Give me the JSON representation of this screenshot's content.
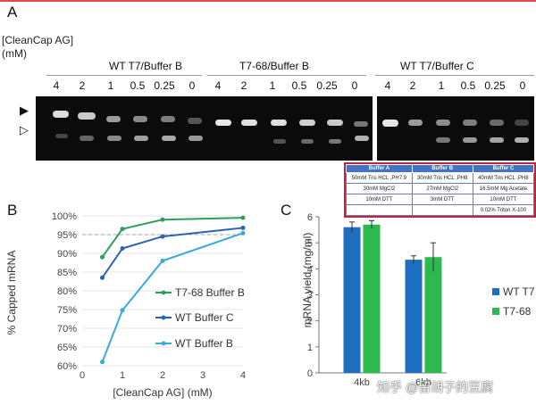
{
  "panels": {
    "a": "A",
    "b": "B",
    "c": "C"
  },
  "gel": {
    "ylabel_line1": "[CleanCap AG]",
    "ylabel_line2": "(mM)",
    "groups": [
      {
        "label": "WT T7/Buffer B",
        "concs": [
          "4",
          "2",
          "1",
          "0.5",
          "0.25",
          "0"
        ]
      },
      {
        "label": "T7-68/Buffer B",
        "concs": [
          "4",
          "2",
          "1",
          "0.5",
          "0.25",
          "0"
        ]
      },
      {
        "label": "WT T7/Buffer C",
        "concs": [
          "4",
          "2",
          "1",
          "0.5",
          "0.25",
          "0"
        ]
      }
    ],
    "marker_top": "▶",
    "marker_bottom": "▷"
  },
  "buffer_table": {
    "headers": [
      "Buffer A",
      "Buffer B",
      "Buffer C"
    ],
    "rows": [
      [
        "50mM Tris HCL ,PH7.9",
        "30mM Tris HCL ,PH8",
        "40mM Tris HCL ,PH8"
      ],
      [
        "30mM MgCl2",
        "27mM MgCl2",
        "16.5mM Mg Acetate"
      ],
      [
        "10mM DTT",
        "3mM DTT",
        "10mM DTT"
      ],
      [
        "",
        "",
        "0.02% Triton X-100"
      ]
    ]
  },
  "chart_data": [
    {
      "type": "line",
      "xlabel": "[CleanCap AG] (mM)",
      "ylabel": "% Capped mRNA",
      "xlim": [
        0,
        4
      ],
      "ylim": [
        60,
        100
      ],
      "xticks": [
        "0",
        "1",
        "2",
        "3",
        "4"
      ],
      "yticks": [
        "60%",
        "65%",
        "70%",
        "75%",
        "80%",
        "85%",
        "90%",
        "95%",
        "100%"
      ],
      "reference_line": 95,
      "series": [
        {
          "name": "T7-68 Buffer B",
          "color": "#2ca05a",
          "x": [
            0.5,
            1,
            2,
            4
          ],
          "y": [
            89,
            96.5,
            99,
            99.5
          ]
        },
        {
          "name": "WT Buffer C",
          "color": "#2a66b0",
          "x": [
            0.5,
            1,
            2,
            4
          ],
          "y": [
            83.5,
            91.3,
            94.5,
            96.8
          ]
        },
        {
          "name": "WT Buffer B",
          "color": "#3aa9e0",
          "x": [
            0.5,
            1,
            2,
            4
          ],
          "y": [
            61,
            74.8,
            88,
            95.4
          ]
        }
      ]
    },
    {
      "type": "bar",
      "ylabel": "mRNA yield (mg/ml)",
      "categories": [
        "4kb",
        "6kb"
      ],
      "ylim": [
        0,
        6
      ],
      "yticks": [
        "0",
        "1",
        "2",
        "3",
        "4",
        "5",
        "6"
      ],
      "series": [
        {
          "name": "WT T7",
          "color": "#1f6fc0",
          "values": [
            5.6,
            4.35
          ],
          "errors": [
            0.2,
            0.15
          ]
        },
        {
          "name": "T7-68",
          "color": "#2eb850",
          "values": [
            5.7,
            4.45
          ],
          "errors": [
            0.15,
            0.55
          ]
        }
      ]
    }
  ],
  "watermark": "知乎 @留胡子的豆腐"
}
